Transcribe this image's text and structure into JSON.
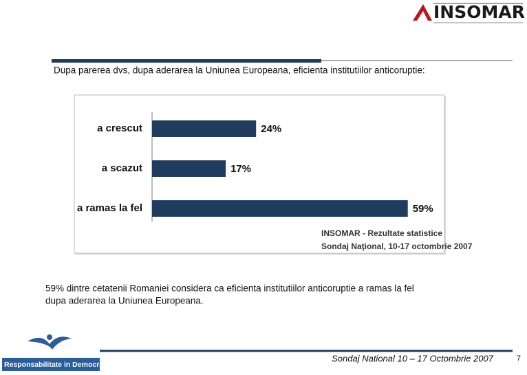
{
  "header": {
    "logo": "INSOMAR"
  },
  "question": "Dupa parerea dvs, dupa aderarea la Uniunea Europeana, eficienta institutiilor anticoruptie:",
  "chart_data": {
    "type": "bar",
    "orientation": "horizontal",
    "categories": [
      "a crescut",
      "a scazut",
      "a ramas la fel"
    ],
    "values": [
      24,
      17,
      59
    ],
    "value_labels": [
      "24%",
      "17%",
      "59%"
    ],
    "color": "#1f3b5e",
    "source": [
      "INSOMAR - Rezultate statistice",
      "Sondaj Naţional, 10-17 octombrie 2007"
    ]
  },
  "summary": [
    "59% dintre cetatenii Romaniei considera ca eficienta institutiilor anticoruptie a ramas la fel",
    "dupa aderarea la Uniunea Europeana."
  ],
  "footer": {
    "logo_text": "Responsabilitate in Democratie",
    "note": "Sondaj National 10 – 17 Octombrie 2007",
    "page": "7"
  }
}
